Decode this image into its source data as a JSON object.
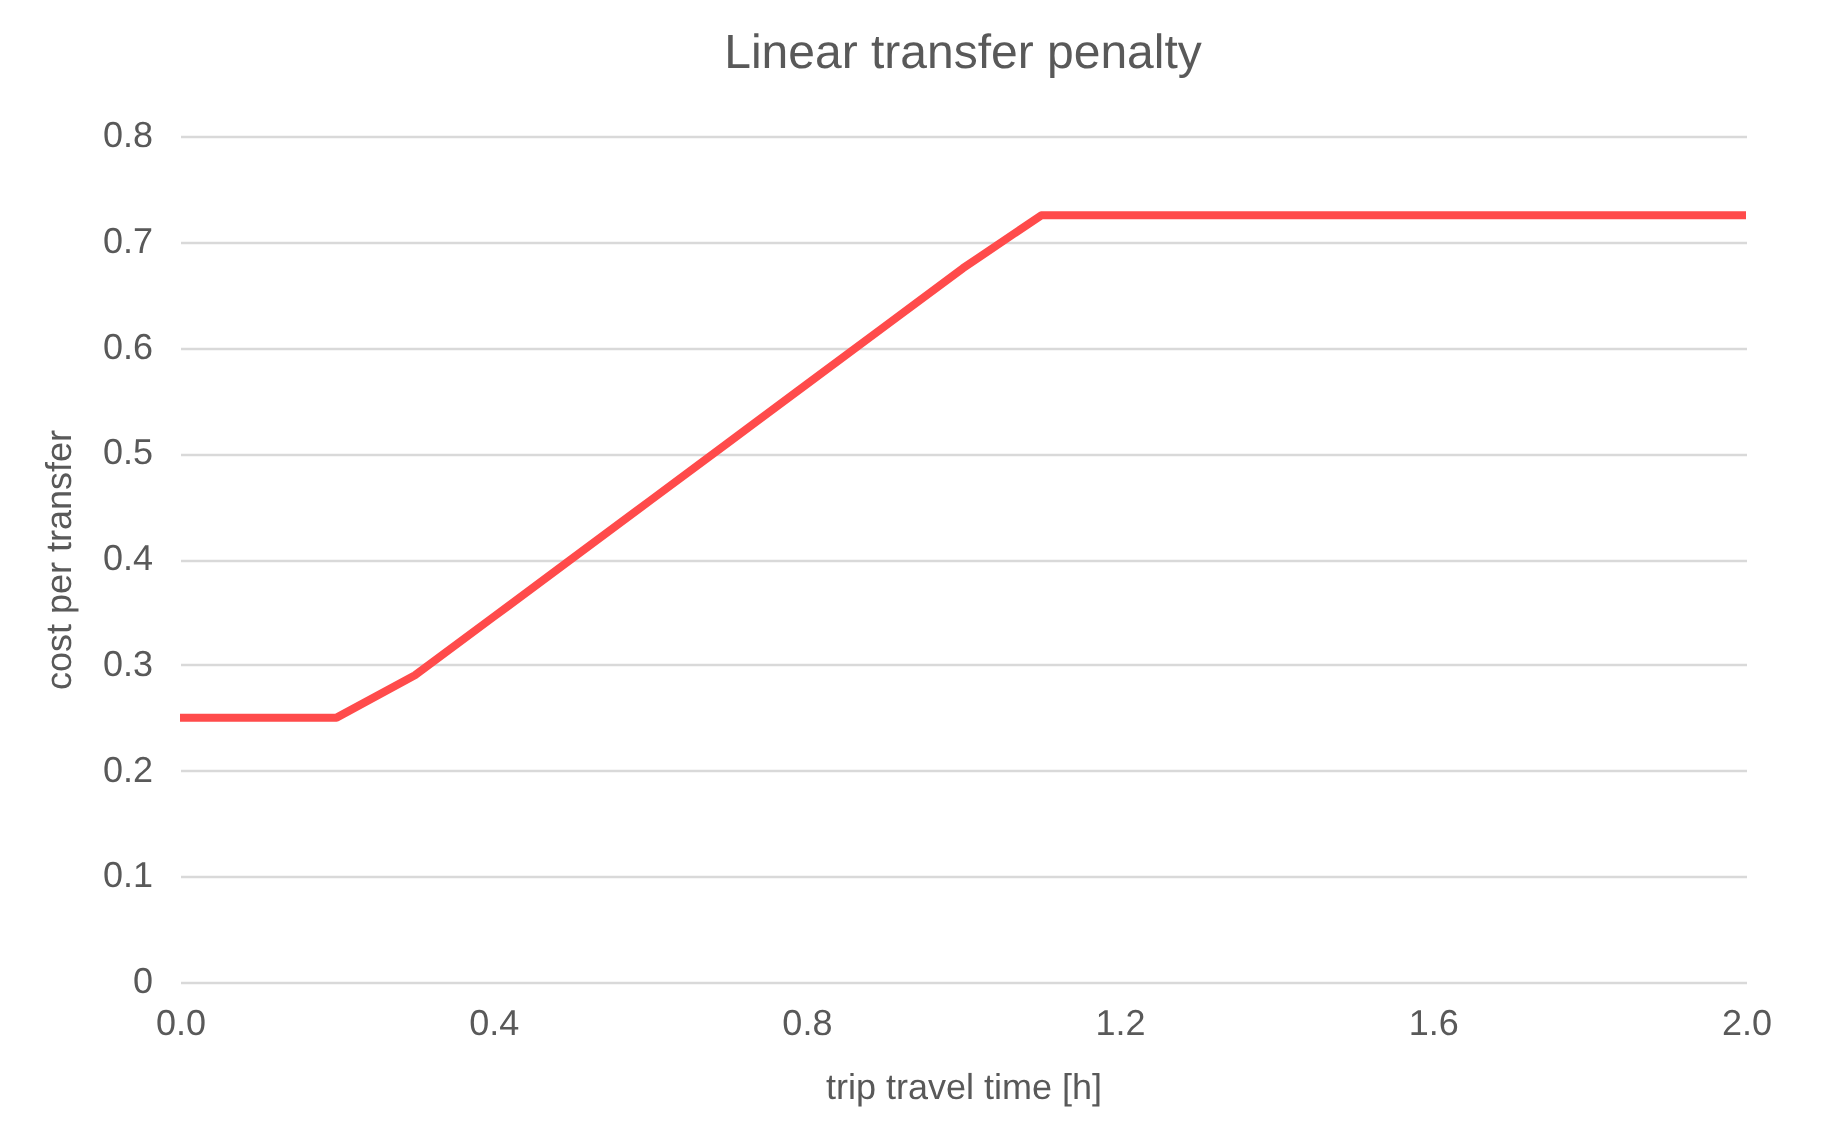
{
  "chart_data": {
    "type": "line",
    "title": "Linear transfer penalty",
    "xlabel": "trip travel time [h]",
    "ylabel": "cost per transfer",
    "x": [
      0,
      0.1,
      0.2,
      0.3,
      0.4,
      0.5,
      0.6,
      0.7,
      0.8,
      0.9,
      1.0,
      1.1,
      1.2,
      1.3,
      1.4,
      1.5,
      1.6,
      1.7,
      1.8,
      1.9,
      2.0
    ],
    "series": [
      {
        "color": "#ff4b4b",
        "values": [
          0.25,
          0.25,
          0.25,
          0.29,
          0.345,
          0.4,
          0.455,
          0.51,
          0.565,
          0.62,
          0.675,
          0.725,
          0.725,
          0.725,
          0.725,
          0.725,
          0.725,
          0.725,
          0.725,
          0.725,
          0.725
        ]
      }
    ],
    "xlim": [
      0,
      2
    ],
    "xticks": [
      {
        "value": 0,
        "label": "0.0"
      },
      {
        "value": 0.4,
        "label": "0.4"
      },
      {
        "value": 0.8,
        "label": "0.8"
      },
      {
        "value": 1.2,
        "label": "1.2"
      },
      {
        "value": 1.6,
        "label": "1.6"
      },
      {
        "value": 2,
        "label": "2.0"
      }
    ],
    "ylim": [
      0,
      0.8
    ],
    "yticks": [
      0,
      0.1,
      0.2,
      0.3,
      0.4,
      0.5,
      0.6,
      0.7,
      0.8
    ],
    "grid": "y",
    "legend": false,
    "marker": "none",
    "line_style": "solid"
  }
}
